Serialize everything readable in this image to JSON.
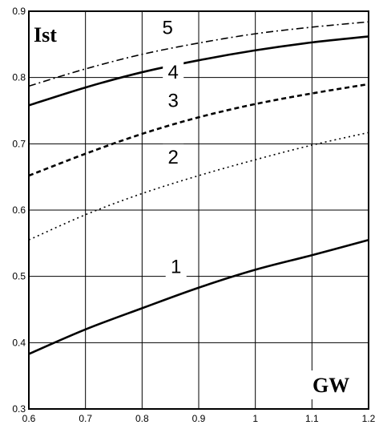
{
  "chart_data": {
    "type": "line",
    "xlabel": "GW",
    "ylabel": "Ist",
    "xlim": [
      0.6,
      1.2
    ],
    "ylim": [
      0.3,
      0.9
    ],
    "grid": true,
    "x_ticks": [
      0.6,
      0.7,
      0.8,
      0.9,
      1.0,
      1.1,
      1.2
    ],
    "x_tick_labels": [
      "0.6",
      "0.7",
      "0.8",
      "0.9",
      "1",
      "1.1",
      "1.2"
    ],
    "y_ticks": [
      0.3,
      0.4,
      0.5,
      0.6,
      0.7,
      0.8,
      0.9
    ],
    "y_tick_labels": [
      "0.3",
      "0.4",
      "0.5",
      "0.6",
      "0.7",
      "0.8",
      "0.9"
    ],
    "x": [
      0.6,
      0.7,
      0.8,
      0.9,
      1.0,
      1.1,
      1.2
    ],
    "series": [
      {
        "label": "1",
        "style": "solid-thick",
        "values": [
          0.383,
          0.42,
          0.452,
          0.483,
          0.51,
          0.532,
          0.555
        ]
      },
      {
        "label": "2",
        "style": "dotted",
        "values": [
          0.555,
          0.593,
          0.625,
          0.652,
          0.676,
          0.698,
          0.717
        ]
      },
      {
        "label": "3",
        "style": "dashed",
        "values": [
          0.652,
          0.685,
          0.715,
          0.74,
          0.76,
          0.776,
          0.79
        ]
      },
      {
        "label": "4",
        "style": "solid",
        "values": [
          0.758,
          0.785,
          0.808,
          0.826,
          0.841,
          0.853,
          0.862
        ]
      },
      {
        "label": "5",
        "style": "dash-dot",
        "values": [
          0.787,
          0.813,
          0.835,
          0.852,
          0.866,
          0.876,
          0.884
        ]
      }
    ]
  }
}
